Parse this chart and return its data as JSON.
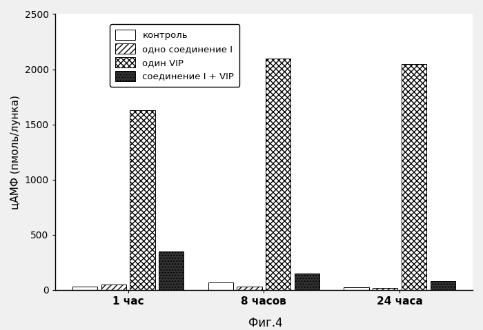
{
  "groups": [
    "1 час",
    "8 часов",
    "24 часа"
  ],
  "series": [
    {
      "label": "контроль",
      "values": [
        30,
        70,
        25
      ],
      "hatch": "",
      "facecolor": "white",
      "edgecolor": "black"
    },
    {
      "label": "одно соединение I",
      "values": [
        50,
        30,
        20
      ],
      "hatch": "////",
      "facecolor": "white",
      "edgecolor": "black"
    },
    {
      "label": "один VIP",
      "values": [
        1630,
        2100,
        2050
      ],
      "hatch": "xxxx",
      "facecolor": "white",
      "edgecolor": "black"
    },
    {
      "label": "соединение I + VIP",
      "values": [
        350,
        150,
        80
      ],
      "hatch": "....",
      "facecolor": "#333333",
      "edgecolor": "black"
    }
  ],
  "ylabel": "цАМФ (пмоль/лунка)",
  "caption": "Фиг.4",
  "ylim": [
    0,
    2500
  ],
  "yticks": [
    0,
    500,
    1000,
    1500,
    2000,
    2500
  ],
  "bar_width": 0.12,
  "group_positions": [
    0.35,
    1.0,
    1.65
  ],
  "figsize": [
    7.0,
    4.79
  ],
  "dpi": 100,
  "bg_color": "#f0f0f0",
  "plot_bg": "white"
}
